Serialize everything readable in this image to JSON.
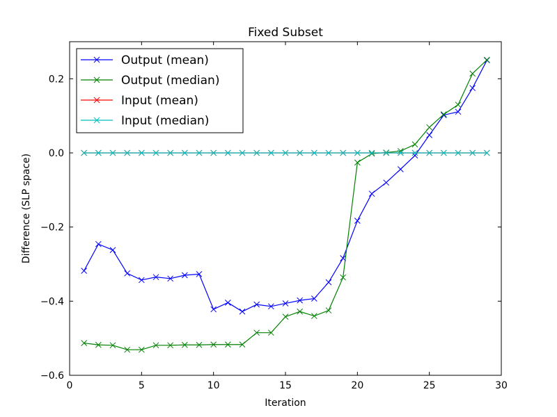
{
  "chart_data": {
    "type": "line",
    "title": "Fixed Subset",
    "xlabel": "Iteration",
    "ylabel": "Difference (SLP space)",
    "xlim": [
      0,
      30
    ],
    "ylim": [
      -0.6,
      0.3
    ],
    "xticks": [
      0,
      5,
      10,
      15,
      20,
      25,
      30
    ],
    "xtick_labels": [
      "0",
      "5",
      "10",
      "15",
      "20",
      "25",
      "30"
    ],
    "yticks": [
      -0.6,
      -0.4,
      -0.2,
      0.0,
      0.2
    ],
    "ytick_labels": [
      "−0.6",
      "−0.4",
      "−0.2",
      "0.0",
      "0.2"
    ],
    "grid": false,
    "legend_position": "top-left",
    "marker": "x",
    "x": [
      1,
      2,
      3,
      4,
      5,
      6,
      7,
      8,
      9,
      10,
      11,
      12,
      13,
      14,
      15,
      16,
      17,
      18,
      19,
      20,
      21,
      22,
      23,
      24,
      25,
      26,
      27,
      28,
      29
    ],
    "series": [
      {
        "name": "Output (mean)",
        "color": "#0000ff",
        "values": [
          -0.318,
          -0.246,
          -0.262,
          -0.325,
          -0.343,
          -0.335,
          -0.339,
          -0.33,
          -0.327,
          -0.422,
          -0.404,
          -0.428,
          -0.409,
          -0.414,
          -0.406,
          -0.398,
          -0.393,
          -0.349,
          -0.284,
          -0.183,
          -0.11,
          -0.08,
          -0.044,
          -0.007,
          0.048,
          0.102,
          0.111,
          0.175,
          0.25
        ]
      },
      {
        "name": "Output (median)",
        "color": "#008000",
        "values": [
          -0.513,
          -0.518,
          -0.519,
          -0.531,
          -0.531,
          -0.519,
          -0.519,
          -0.518,
          -0.518,
          -0.517,
          -0.517,
          -0.517,
          -0.485,
          -0.485,
          -0.442,
          -0.428,
          -0.44,
          -0.425,
          -0.336,
          -0.026,
          -0.002,
          0.001,
          0.005,
          0.023,
          0.069,
          0.104,
          0.13,
          0.214,
          0.251
        ]
      },
      {
        "name": "Input (mean)",
        "color": "#ff0000",
        "values": [
          0,
          0,
          0,
          0,
          0,
          0,
          0,
          0,
          0,
          0,
          0,
          0,
          0,
          0,
          0,
          0,
          0,
          0,
          0,
          0,
          0,
          0,
          0,
          0,
          0,
          0,
          0,
          0,
          0
        ]
      },
      {
        "name": "Input (median)",
        "color": "#00bfbf",
        "values": [
          0,
          0,
          0,
          0,
          0,
          0,
          0,
          0,
          0,
          0,
          0,
          0,
          0,
          0,
          0,
          0,
          0,
          0,
          0,
          0,
          0,
          0,
          0,
          0,
          0,
          0,
          0,
          0,
          0
        ]
      }
    ]
  }
}
